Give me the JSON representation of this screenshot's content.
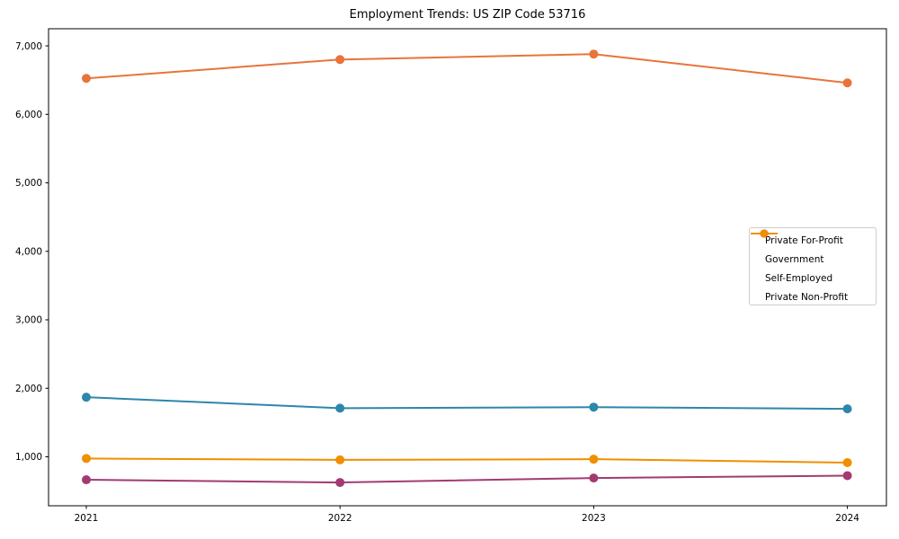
{
  "chart_data": {
    "type": "line",
    "title": "Employment Trends: US ZIP Code 53716",
    "x_categories": [
      "2021",
      "2022",
      "2023",
      "2024"
    ],
    "series": [
      {
        "name": "Private For-Profit",
        "color": "#E8743B",
        "values": [
          6525,
          6800,
          6880,
          6460
        ]
      },
      {
        "name": "Government",
        "color": "#2E86AB",
        "values": [
          1870,
          1710,
          1725,
          1700
        ]
      },
      {
        "name": "Self-Employed",
        "color": "#A23B72",
        "values": [
          665,
          625,
          690,
          725
        ]
      },
      {
        "name": "Private Non-Profit",
        "color": "#F18F01",
        "values": [
          975,
          955,
          965,
          915
        ]
      }
    ],
    "yticks": [
      1000,
      2000,
      3000,
      4000,
      5000,
      6000,
      7000
    ],
    "ytick_labels": [
      "1,000",
      "2,000",
      "3,000",
      "4,000",
      "5,000",
      "6,000",
      "7,000"
    ],
    "ylim": [
      285,
      7250
    ],
    "xlabel": "",
    "ylabel": "",
    "grid": false,
    "marker": "o",
    "legend_position": "center-right",
    "background_color": "#ffffff",
    "axis_color": "#000000",
    "legend_border_color": "#cccccc"
  }
}
